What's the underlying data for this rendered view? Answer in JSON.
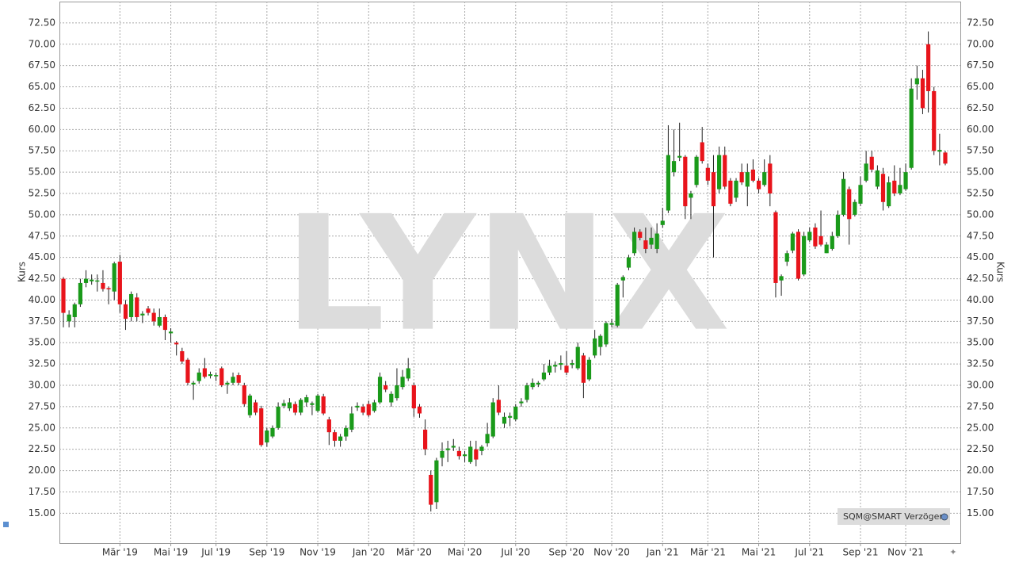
{
  "chart_data": {
    "type": "candlestick",
    "watermark": "LYNX",
    "legend_label": "SQM@SMART Verzögert",
    "y_label": "Kurs",
    "up_color": "#1a9a1a",
    "down_color": "#e8141b",
    "ylim": [
      11.5,
      75
    ],
    "yticks": [
      {
        "value": 15,
        "label": "15.00"
      },
      {
        "value": 17.5,
        "label": "17.50"
      },
      {
        "value": 20,
        "label": "20.00"
      },
      {
        "value": 22.5,
        "label": "22.50"
      },
      {
        "value": 25,
        "label": "25.00"
      },
      {
        "value": 27.5,
        "label": "27.50"
      },
      {
        "value": 30,
        "label": "30.00"
      },
      {
        "value": 32.5,
        "label": "32.50"
      },
      {
        "value": 35,
        "label": "35.00"
      },
      {
        "value": 37.5,
        "label": "37.50"
      },
      {
        "value": 40,
        "label": "40.00"
      },
      {
        "value": 42.5,
        "label": "42.50"
      },
      {
        "value": 45,
        "label": "45.00"
      },
      {
        "value": 47.5,
        "label": "47.50"
      },
      {
        "value": 50,
        "label": "50.00"
      },
      {
        "value": 52.5,
        "label": "52.50"
      },
      {
        "value": 55,
        "label": "55.00"
      },
      {
        "value": 57.5,
        "label": "57.50"
      },
      {
        "value": 60,
        "label": "60.00"
      },
      {
        "value": 62.5,
        "label": "62.50"
      },
      {
        "value": 65,
        "label": "65.00"
      },
      {
        "value": 67.5,
        "label": "67.50"
      },
      {
        "value": 70,
        "label": "70.00"
      },
      {
        "value": 72.5,
        "label": "72.50"
      }
    ],
    "grid": true,
    "categories": [
      null,
      null,
      null,
      null,
      null,
      null,
      null,
      null,
      null,
      null,
      "Mär '19",
      null,
      null,
      null,
      null,
      null,
      null,
      null,
      null,
      "Mai '19",
      null,
      null,
      null,
      null,
      null,
      null,
      null,
      "Jul '19",
      null,
      null,
      null,
      null,
      null,
      null,
      null,
      null,
      "Sep '19",
      null,
      null,
      null,
      null,
      null,
      null,
      null,
      null,
      "Nov '19",
      null,
      null,
      null,
      null,
      null,
      null,
      null,
      null,
      "Jan '20",
      null,
      null,
      null,
      null,
      null,
      null,
      null,
      "Mär '20",
      null,
      null,
      null,
      null,
      null,
      null,
      null,
      null,
      "Mai '20",
      null,
      null,
      null,
      null,
      null,
      null,
      null,
      null,
      "Jul '20",
      null,
      null,
      null,
      null,
      null,
      null,
      null,
      null,
      "Sep '20",
      null,
      null,
      null,
      null,
      null,
      null,
      null,
      "Nov '20",
      null,
      null,
      null,
      null,
      null,
      null,
      null,
      null,
      "Jan '21",
      null,
      null,
      null,
      null,
      null,
      null,
      null,
      "Mär '21",
      null,
      null,
      null,
      null,
      null,
      null,
      null,
      null,
      "Mai '21",
      null,
      null,
      null,
      null,
      null,
      null,
      null,
      null,
      "Jul '21",
      null,
      null,
      null,
      null,
      null,
      null,
      null,
      null,
      "Sep '21",
      null,
      null,
      null,
      null,
      null,
      null,
      null,
      "Nov '21",
      null,
      null,
      null,
      null,
      null,
      null,
      null
    ],
    "ohlc": [
      [
        42.5,
        42.7,
        36.8,
        38.5
      ],
      [
        37.5,
        38.8,
        36.8,
        38.3
      ],
      [
        38,
        39.7,
        36.8,
        39.5
      ],
      [
        39.5,
        42.5,
        39.2,
        42
      ],
      [
        42,
        43.5,
        41.5,
        42.5
      ],
      [
        42.2,
        43,
        41.8,
        42.4
      ],
      [
        42.3,
        43,
        41,
        42.3
      ],
      [
        42,
        43.5,
        41,
        41.3
      ],
      [
        41.4,
        41.6,
        39.5,
        41.3
      ],
      [
        41,
        44.5,
        40,
        44.3
      ],
      [
        44.5,
        45.3,
        38.5,
        39.5
      ],
      [
        39.5,
        40,
        36.5,
        37.8
      ],
      [
        38,
        41,
        37.5,
        40.7
      ],
      [
        40.3,
        40.8,
        37.5,
        38
      ],
      [
        38.2,
        38.7,
        37.3,
        38.4
      ],
      [
        39,
        39.3,
        38.2,
        38.5
      ],
      [
        38.5,
        39,
        37,
        37.5
      ],
      [
        37,
        39,
        36.8,
        38
      ],
      [
        38,
        38.3,
        35.3,
        36.5
      ],
      [
        36.1,
        36.7,
        35,
        36.3
      ],
      [
        35,
        35.2,
        33.5,
        34.8
      ],
      [
        34,
        34.4,
        32.5,
        32.8
      ],
      [
        33,
        33.2,
        30,
        30.3
      ],
      [
        30.1,
        30.5,
        28.3,
        30.3
      ],
      [
        30.5,
        32,
        30.2,
        31.5
      ],
      [
        32,
        33.2,
        30.8,
        31
      ],
      [
        31.1,
        31.6,
        30.8,
        31.3
      ],
      [
        31.1,
        31.5,
        30.5,
        31.2
      ],
      [
        32,
        32.2,
        29.8,
        30
      ],
      [
        30.1,
        30.5,
        29,
        30.3
      ],
      [
        30.3,
        31.5,
        30,
        31
      ],
      [
        31.2,
        31.5,
        30,
        30.3
      ],
      [
        30,
        30.3,
        27.5,
        27.8
      ],
      [
        26.5,
        29,
        26.2,
        28.8
      ],
      [
        28,
        28.3,
        26.5,
        26.8
      ],
      [
        27.3,
        27.6,
        22.8,
        23
      ],
      [
        23.3,
        25,
        22.8,
        24.7
      ],
      [
        24,
        25.3,
        23.8,
        25
      ],
      [
        25,
        28,
        24.8,
        27.5
      ],
      [
        27.6,
        28.3,
        27.3,
        27.9
      ],
      [
        27.3,
        28.5,
        27,
        28
      ],
      [
        27.8,
        28.1,
        26.5,
        26.8
      ],
      [
        26.8,
        28.5,
        26.5,
        28.3
      ],
      [
        28,
        28.9,
        27.5,
        28.6
      ],
      [
        27.7,
        28.1,
        26.5,
        27.9
      ],
      [
        27,
        29,
        26.8,
        28.8
      ],
      [
        28.7,
        29,
        26.5,
        26.7
      ],
      [
        26,
        26.3,
        23,
        24.5
      ],
      [
        24.5,
        24.8,
        22.8,
        23.5
      ],
      [
        23.5,
        24.3,
        22.8,
        24
      ],
      [
        24,
        25.3,
        23.5,
        25
      ],
      [
        24.8,
        27.5,
        24.5,
        26.7
      ],
      [
        27.4,
        28,
        27,
        27.6
      ],
      [
        27.5,
        27.8,
        26.5,
        26.8
      ],
      [
        27.8,
        28.2,
        26.3,
        26.5
      ],
      [
        27,
        28.3,
        26.8,
        28
      ],
      [
        28,
        31.5,
        27.8,
        31
      ],
      [
        30,
        30.5,
        29.2,
        29.5
      ],
      [
        28,
        29.3,
        27.5,
        29
      ],
      [
        28.5,
        32,
        28.2,
        30
      ],
      [
        29.8,
        31.8,
        29.5,
        31
      ],
      [
        30.8,
        33.2,
        30.5,
        32
      ],
      [
        30,
        30.3,
        26.3,
        27.3
      ],
      [
        27.5,
        27.8,
        26.2,
        26.7
      ],
      [
        24.8,
        26,
        21.8,
        22.5
      ],
      [
        19.5,
        20,
        15.2,
        16
      ],
      [
        16.3,
        21.5,
        15.5,
        21.2
      ],
      [
        21.5,
        23.3,
        20.5,
        22.3
      ],
      [
        22.4,
        23.5,
        21,
        22.6
      ],
      [
        22.7,
        23.7,
        22.3,
        22.9
      ],
      [
        22.3,
        22.8,
        21.3,
        21.7
      ],
      [
        21.7,
        22.3,
        21,
        21.9
      ],
      [
        21,
        23.5,
        20.8,
        22.8
      ],
      [
        22.5,
        23.5,
        20.5,
        21.3
      ],
      [
        22.3,
        23,
        21.8,
        22.8
      ],
      [
        23.2,
        25.6,
        22.8,
        24.3
      ],
      [
        24,
        28.5,
        23.8,
        28
      ],
      [
        28.3,
        30,
        26.5,
        26.8
      ],
      [
        25.5,
        26.8,
        25,
        26.3
      ],
      [
        26.2,
        26.8,
        25.2,
        26.4
      ],
      [
        26,
        27.8,
        25.8,
        27.5
      ],
      [
        27.9,
        28.5,
        27.5,
        28.1
      ],
      [
        28.3,
        30.3,
        28,
        30
      ],
      [
        29.8,
        30.8,
        29.5,
        30.3
      ],
      [
        30.1,
        30.5,
        29.8,
        30.3
      ],
      [
        30.7,
        32.5,
        30.5,
        31.5
      ],
      [
        31.5,
        33,
        31.2,
        32.3
      ],
      [
        32.2,
        32.8,
        31.5,
        32.4
      ],
      [
        32.4,
        33.5,
        31.8,
        32.6
      ],
      [
        32.3,
        34,
        31.2,
        31.5
      ],
      [
        32.4,
        33,
        32,
        32.6
      ],
      [
        32,
        35,
        31.8,
        34.5
      ],
      [
        33.5,
        33.8,
        28.5,
        30.3
      ],
      [
        30.7,
        33.3,
        30.5,
        33
      ],
      [
        33.5,
        36.5,
        33.2,
        35.5
      ],
      [
        34.5,
        36,
        33.5,
        35.8
      ],
      [
        34.8,
        37.5,
        34.5,
        37.3
      ],
      [
        37.1,
        37.8,
        36.8,
        37.3
      ],
      [
        37,
        42,
        36.8,
        41.8
      ],
      [
        42.3,
        42.9,
        40.3,
        42.7
      ],
      [
        43.8,
        45.3,
        43.5,
        45
      ],
      [
        45.5,
        48.5,
        45.2,
        48
      ],
      [
        48,
        48.3,
        47,
        47.3
      ],
      [
        47,
        48.5,
        45.5,
        46
      ],
      [
        46.5,
        48.5,
        46,
        47.3
      ],
      [
        46,
        49,
        45.5,
        47.8
      ],
      [
        48.8,
        50.8,
        48.5,
        49.3
      ],
      [
        50.5,
        60.5,
        50.2,
        57
      ],
      [
        55,
        60,
        54.5,
        56.3
      ],
      [
        56.7,
        60.8,
        56.3,
        56.9
      ],
      [
        56.8,
        57,
        49.5,
        51
      ],
      [
        52,
        52.8,
        49.5,
        52.5
      ],
      [
        53.5,
        57,
        53.2,
        56.8
      ],
      [
        58.5,
        60.3,
        56,
        56.3
      ],
      [
        55.5,
        56,
        53.5,
        54
      ],
      [
        55,
        57,
        45,
        51
      ],
      [
        53,
        58,
        52.5,
        57
      ],
      [
        57,
        58,
        53,
        53.3
      ],
      [
        54,
        54.3,
        51,
        51.3
      ],
      [
        52,
        54.3,
        51.5,
        54
      ],
      [
        55,
        56,
        53.5,
        53.8
      ],
      [
        53.3,
        56,
        51,
        55
      ],
      [
        55.3,
        56.5,
        53.8,
        54
      ],
      [
        54,
        54.3,
        52.5,
        53
      ],
      [
        53.5,
        56.5,
        53.3,
        55
      ],
      [
        56,
        57,
        51,
        52.5
      ],
      [
        50.3,
        50.5,
        40.3,
        42
      ],
      [
        42.3,
        43,
        40.5,
        42.8
      ],
      [
        44.5,
        45.8,
        44,
        45.5
      ],
      [
        45.8,
        48,
        45.5,
        47.8
      ],
      [
        48,
        48.3,
        42.3,
        42.5
      ],
      [
        43,
        48,
        42.8,
        47.5
      ],
      [
        47,
        48.5,
        46.8,
        48
      ],
      [
        48.5,
        49,
        46,
        46.3
      ],
      [
        47.5,
        50.5,
        46.3,
        46.5
      ],
      [
        45.5,
        46.8,
        45.5,
        46.5
      ],
      [
        46,
        48,
        45.8,
        47.5
      ],
      [
        47.5,
        50.5,
        47.3,
        50
      ],
      [
        50,
        55,
        49.8,
        54.2
      ],
      [
        53,
        53.3,
        46.5,
        49.5
      ],
      [
        50,
        51.8,
        49.8,
        51.5
      ],
      [
        51.3,
        54.5,
        51,
        53.5
      ],
      [
        54,
        57.5,
        53.8,
        56
      ],
      [
        56.8,
        57.5,
        55,
        55.3
      ],
      [
        53.3,
        55.8,
        53,
        55.2
      ],
      [
        54.8,
        55.5,
        50.5,
        51.5
      ],
      [
        51,
        54.5,
        50.8,
        53.8
      ],
      [
        54,
        55.8,
        52.2,
        52.5
      ],
      [
        52.5,
        55.5,
        52.3,
        53.5
      ],
      [
        53,
        56,
        52.8,
        55
      ],
      [
        55.5,
        66,
        55.3,
        64.8
      ],
      [
        65.3,
        67.5,
        63.5,
        66
      ],
      [
        66,
        67,
        61.8,
        62.5
      ],
      [
        70,
        71.5,
        62,
        64.5
      ],
      [
        64.5,
        65,
        57,
        57.5
      ],
      [
        57.4,
        59.5,
        55.8,
        57.6
      ],
      [
        57.3,
        57.5,
        55.8,
        56
      ]
    ]
  }
}
